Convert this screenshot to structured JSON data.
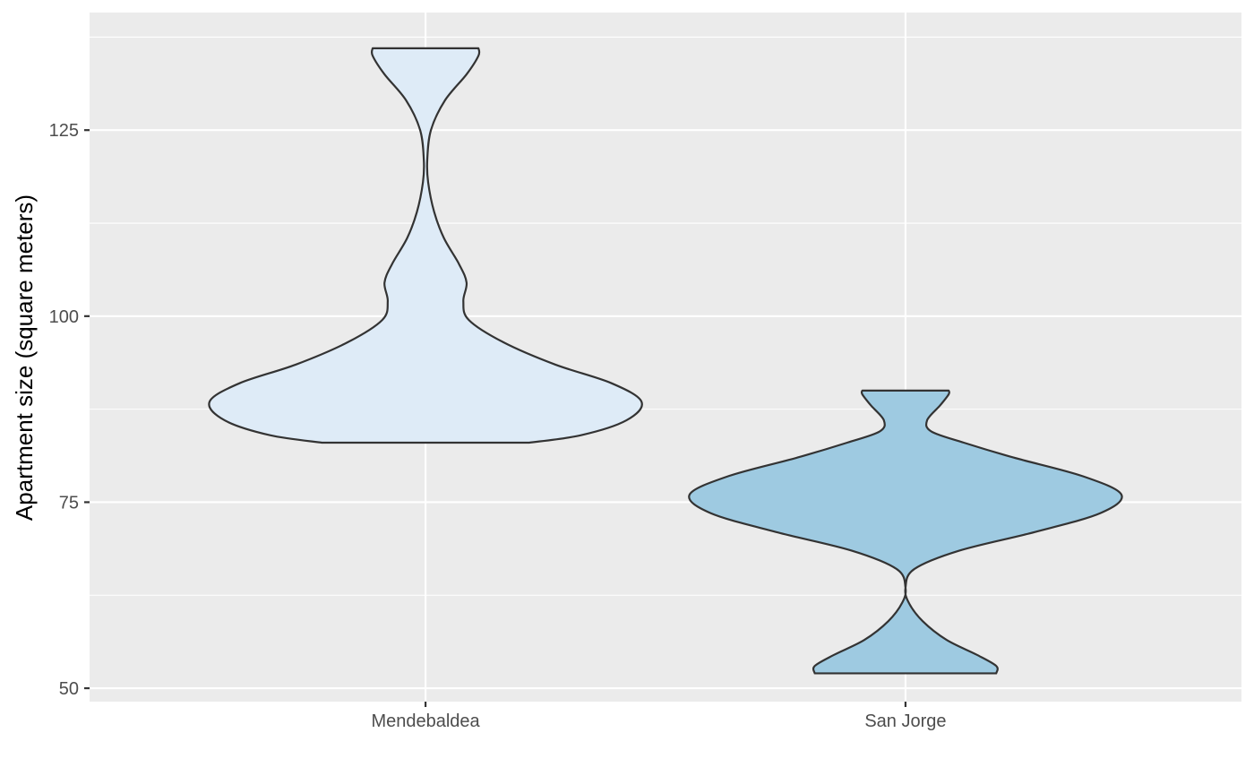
{
  "chart_data": {
    "type": "violin",
    "title": "",
    "xlabel": "",
    "ylabel": "Apartment size (square meters)",
    "ylim": [
      48.2,
      140.8
    ],
    "y_ticks": [
      50,
      75,
      100,
      125
    ],
    "grid": true,
    "legend": "none",
    "panel_background": "#ebebeb",
    "grid_color": "#ffffff",
    "outline_color": "#333333",
    "categories": [
      "Mendebaldea",
      "San Jorge"
    ],
    "series": [
      {
        "category": "Mendebaldea",
        "fill": "#deebf7",
        "y_min": 83,
        "y_max": 136,
        "density_profile": [
          {
            "y": 83,
            "w": 0.48
          },
          {
            "y": 84,
            "w": 0.72
          },
          {
            "y": 86,
            "w": 0.93
          },
          {
            "y": 88.5,
            "w": 1.0
          },
          {
            "y": 91,
            "w": 0.86
          },
          {
            "y": 93.5,
            "w": 0.6
          },
          {
            "y": 96.5,
            "w": 0.36
          },
          {
            "y": 99.5,
            "w": 0.2
          },
          {
            "y": 102,
            "w": 0.175
          },
          {
            "y": 104.5,
            "w": 0.19
          },
          {
            "y": 107,
            "w": 0.155
          },
          {
            "y": 110.5,
            "w": 0.085
          },
          {
            "y": 114,
            "w": 0.04
          },
          {
            "y": 118,
            "w": 0.012
          },
          {
            "y": 121,
            "w": 0.008
          },
          {
            "y": 125,
            "w": 0.025
          },
          {
            "y": 129,
            "w": 0.09
          },
          {
            "y": 132.5,
            "w": 0.19
          },
          {
            "y": 135,
            "w": 0.245
          },
          {
            "y": 136,
            "w": 0.245
          }
        ]
      },
      {
        "category": "San Jorge",
        "fill": "#9ecae1",
        "y_min": 52,
        "y_max": 90,
        "density_profile": [
          {
            "y": 52,
            "w": 0.42
          },
          {
            "y": 53,
            "w": 0.42
          },
          {
            "y": 54.5,
            "w": 0.33
          },
          {
            "y": 56.5,
            "w": 0.19
          },
          {
            "y": 59,
            "w": 0.08
          },
          {
            "y": 61.5,
            "w": 0.015
          },
          {
            "y": 63.5,
            "w": 0.0
          },
          {
            "y": 66,
            "w": 0.04
          },
          {
            "y": 68.5,
            "w": 0.25
          },
          {
            "y": 71,
            "w": 0.6
          },
          {
            "y": 73.5,
            "w": 0.9
          },
          {
            "y": 76,
            "w": 1.0
          },
          {
            "y": 78.5,
            "w": 0.82
          },
          {
            "y": 81,
            "w": 0.5
          },
          {
            "y": 83,
            "w": 0.27
          },
          {
            "y": 84.5,
            "w": 0.12
          },
          {
            "y": 86,
            "w": 0.1
          },
          {
            "y": 88,
            "w": 0.16
          },
          {
            "y": 89.5,
            "w": 0.2
          },
          {
            "y": 90,
            "w": 0.2
          }
        ]
      }
    ]
  }
}
